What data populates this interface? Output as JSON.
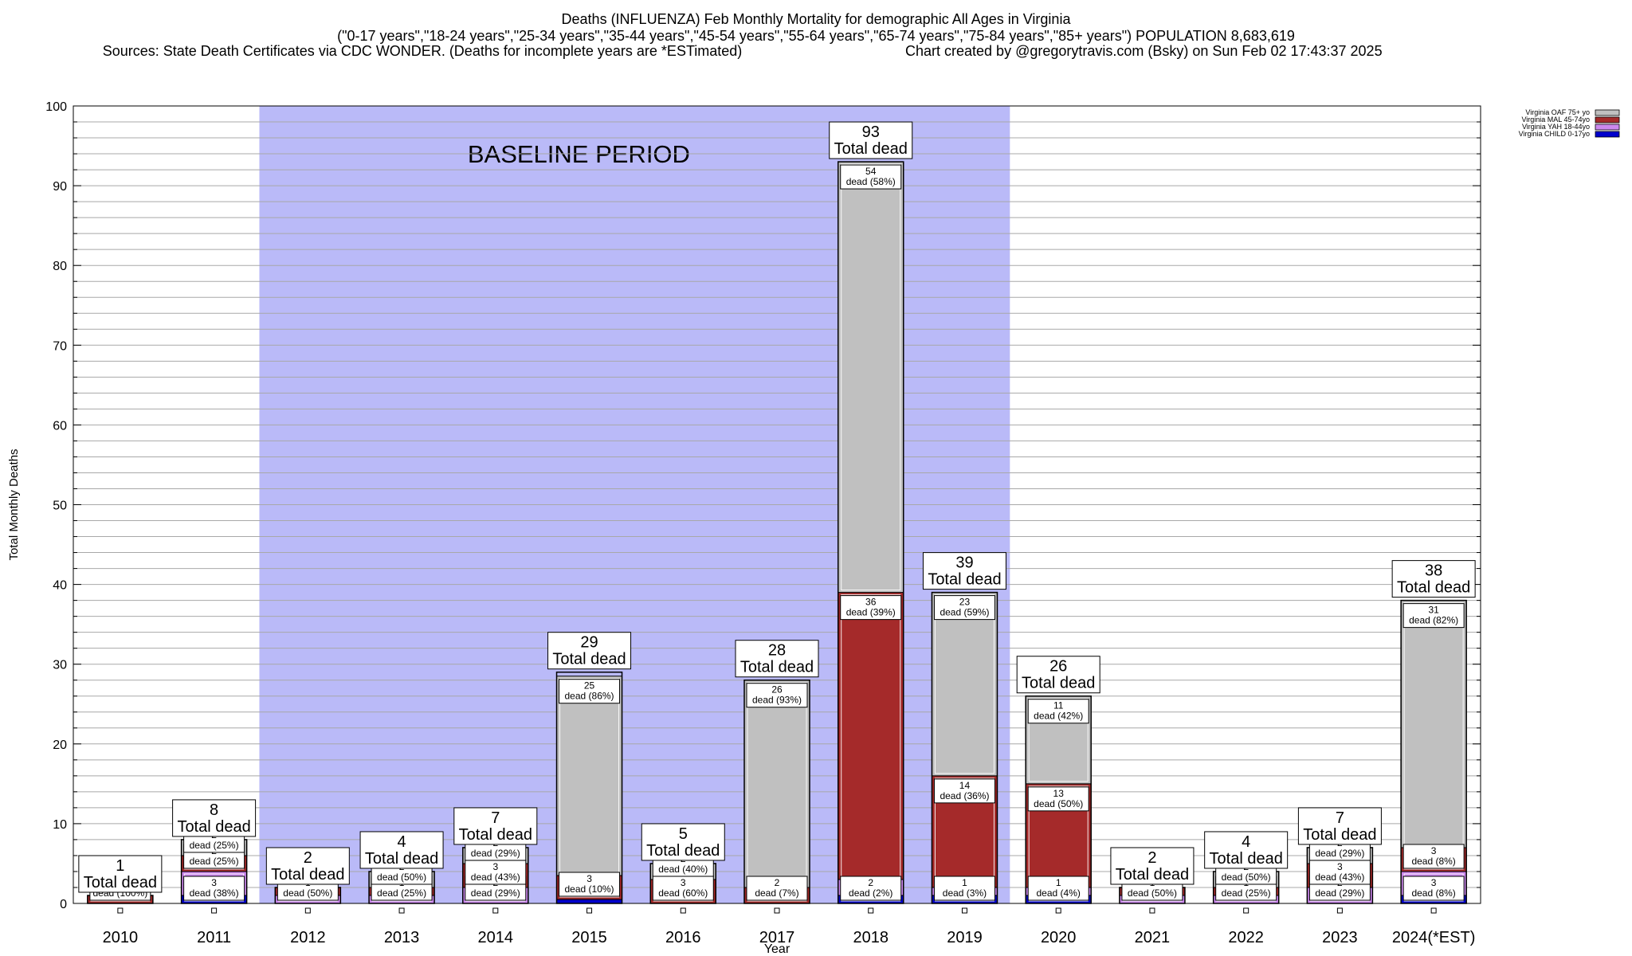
{
  "header": {
    "title": "Deaths (INFLUENZA) Feb Monthly Mortality for demographic All Ages in Virginia",
    "subtitle": "(\"0-17 years\",\"18-24 years\",\"25-34 years\",\"35-44 years\",\"45-54 years\",\"55-64 years\",\"65-74 years\",\"75-84 years\",\"85+ years\") POPULATION 8,683,619",
    "sources": "Sources: State Death Certificates via CDC WONDER. (Deaths for incomplete years are *ESTimated)",
    "credit": "Chart created by @gregorytravis.com (Bsky) on Sun Feb 02 17:43:37 2025"
  },
  "chart_data": {
    "type": "bar",
    "stacked": true,
    "xlabel": "Year",
    "ylabel": "Total Monthly Deaths",
    "ylim": [
      0,
      100
    ],
    "yticks": [
      0,
      10,
      20,
      30,
      40,
      50,
      60,
      70,
      80,
      90,
      100
    ],
    "grid": true,
    "legend_position": "top-right",
    "baseline_label": "BASELINE PERIOD",
    "baseline_range": [
      "2012",
      "2019"
    ],
    "total_word": "Total dead",
    "categories": [
      "2010",
      "2011",
      "2012",
      "2013",
      "2014",
      "2015",
      "2016",
      "2017",
      "2018",
      "2019",
      "2020",
      "2021",
      "2022",
      "2023",
      "2024(*EST)"
    ],
    "totals": [
      1,
      8,
      2,
      4,
      7,
      29,
      5,
      28,
      93,
      39,
      26,
      2,
      4,
      7,
      38
    ],
    "series": [
      {
        "name": "Virginia CHILD 0-17yo",
        "color": "#0000cc",
        "values": [
          0,
          1,
          0,
          0,
          0,
          0.5,
          0,
          0,
          1,
          1,
          1,
          0,
          0,
          0,
          1
        ]
      },
      {
        "name": "Virginia YAH 18-44yo",
        "color": "#cc88ee",
        "values": [
          0,
          3,
          1,
          1,
          2,
          0,
          0,
          0,
          2,
          1,
          1,
          1,
          1,
          2,
          3
        ]
      },
      {
        "name": "Virginia MAL 45-74yo",
        "color": "#a52a2a",
        "values": [
          1,
          2,
          1,
          1,
          3,
          3,
          3,
          2,
          36,
          14,
          13,
          1,
          1,
          3,
          3
        ]
      },
      {
        "name": "Virginia OAF 75+ yo",
        "color": "#c0c0c0",
        "values": [
          0,
          2,
          0,
          2,
          2,
          25,
          2,
          26,
          54,
          23,
          11,
          0,
          2,
          2,
          31
        ]
      }
    ],
    "segment_labels": [
      [
        {
          "series": 2,
          "count": "1",
          "text": "dead (100%)"
        }
      ],
      [
        {
          "series": 1,
          "count": "3",
          "text": "dead (38%)"
        },
        {
          "series": 2,
          "count": "2",
          "text": "dead (25%)"
        },
        {
          "series": 3,
          "count": "2",
          "text": "dead (25%)"
        }
      ],
      [
        {
          "series": 1,
          "count": "1",
          "text": "dead (50%)"
        }
      ],
      [
        {
          "series": 1,
          "count": "1",
          "text": "dead (25%)"
        },
        {
          "series": 3,
          "count": "2",
          "text": "dead (50%)"
        }
      ],
      [
        {
          "series": 1,
          "count": "2",
          "text": "dead (29%)"
        },
        {
          "series": 2,
          "count": "3",
          "text": "dead (43%)"
        },
        {
          "series": 3,
          "count": "2",
          "text": "dead (29%)"
        }
      ],
      [
        {
          "series": 2,
          "count": "3",
          "text": "dead (10%)"
        },
        {
          "series": 3,
          "count": "25",
          "text": "dead (86%)"
        }
      ],
      [
        {
          "series": 2,
          "count": "3",
          "text": "dead (60%)"
        },
        {
          "series": 3,
          "count": "2",
          "text": "dead (40%)"
        }
      ],
      [
        {
          "series": 2,
          "count": "2",
          "text": "dead (7%)"
        },
        {
          "series": 3,
          "count": "26",
          "text": "dead (93%)"
        }
      ],
      [
        {
          "series": 1,
          "count": "2",
          "text": "dead (2%)"
        },
        {
          "series": 2,
          "count": "36",
          "text": "dead (39%)"
        },
        {
          "series": 3,
          "count": "54",
          "text": "dead (58%)"
        }
      ],
      [
        {
          "series": 1,
          "count": "1",
          "text": "dead (3%)"
        },
        {
          "series": 2,
          "count": "14",
          "text": "dead (36%)"
        },
        {
          "series": 3,
          "count": "23",
          "text": "dead (59%)"
        }
      ],
      [
        {
          "series": 1,
          "count": "1",
          "text": "dead (4%)"
        },
        {
          "series": 2,
          "count": "13",
          "text": "dead (50%)"
        },
        {
          "series": 3,
          "count": "11",
          "text": "dead (42%)"
        }
      ],
      [
        {
          "series": 1,
          "count": "1",
          "text": "dead (50%)"
        }
      ],
      [
        {
          "series": 1,
          "count": "1",
          "text": "dead (25%)"
        },
        {
          "series": 3,
          "count": "2",
          "text": "dead (50%)"
        }
      ],
      [
        {
          "series": 1,
          "count": "2",
          "text": "dead (29%)"
        },
        {
          "series": 2,
          "count": "3",
          "text": "dead (43%)"
        },
        {
          "series": 3,
          "count": "2",
          "text": "dead (29%)"
        }
      ],
      [
        {
          "series": 1,
          "count": "3",
          "text": "dead (8%)"
        },
        {
          "series": 2,
          "count": "3",
          "text": "dead (8%)"
        },
        {
          "series": 3,
          "count": "31",
          "text": "dead (82%)"
        }
      ]
    ]
  }
}
